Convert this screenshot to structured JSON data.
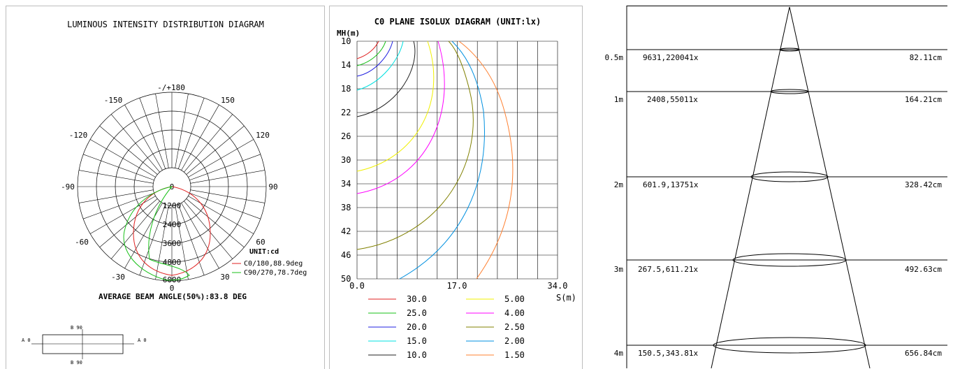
{
  "panel1": {
    "title": "LUMINOUS INTENSITY DISTRIBUTION DIAGRAM",
    "angle_labels": [
      "-/+180",
      "150",
      "-150",
      "120",
      "-120",
      "90",
      "-90",
      "60",
      "-60",
      "30",
      "-30",
      "0"
    ],
    "ring_labels": [
      "0",
      "1200",
      "2400",
      "3600",
      "4800",
      "6000"
    ],
    "unit": "UNIT:cd",
    "legend": [
      {
        "label": "C0/180,88.9deg",
        "color": "#e02020"
      },
      {
        "label": "C90/270,78.7deg",
        "color": "#18c018"
      }
    ],
    "beam_angle": "AVERAGE BEAM ANGLE(50%):83.8 DEG",
    "mini": {
      "top": "B 90",
      "bottom": "B 90",
      "left": "A 0",
      "right": "A 0"
    }
  },
  "panel2": {
    "title": "C0 PLANE ISOLUX DIAGRAM (UNIT:lx)",
    "y_axis_label": "MH(m)",
    "x_axis_label": "S(m)",
    "y_ticks": [
      "10",
      "14",
      "18",
      "22",
      "26",
      "30",
      "34",
      "38",
      "42",
      "46",
      "50"
    ],
    "x_ticks": [
      "0.0",
      "17.0",
      "34.0"
    ],
    "legend": [
      {
        "value": "30.0",
        "color": "#e02020"
      },
      {
        "value": "25.0",
        "color": "#18c018"
      },
      {
        "value": "20.0",
        "color": "#2020e0"
      },
      {
        "value": "15.0",
        "color": "#00e0e0"
      },
      {
        "value": "10.0",
        "color": "#202020"
      },
      {
        "value": "5.00",
        "color": "#f0f000"
      },
      {
        "value": "4.00",
        "color": "#ff00ff"
      },
      {
        "value": "2.50",
        "color": "#808000"
      },
      {
        "value": "2.00",
        "color": "#0090e0"
      },
      {
        "value": "1.50",
        "color": "#ff8030"
      }
    ]
  },
  "panel3": {
    "rows": [
      {
        "height": "0.5m",
        "lux": "9631,220041x",
        "diameter": "82.11cm"
      },
      {
        "height": "1m",
        "lux": "2408,55011x",
        "diameter": "164.21cm"
      },
      {
        "height": "2m",
        "lux": "601.9,13751x",
        "diameter": "328.42cm"
      },
      {
        "height": "3m",
        "lux": "267.5,611.21x",
        "diameter": "492.63cm"
      },
      {
        "height": "4m",
        "lux": "150.5,343.81x",
        "diameter": "656.84cm"
      }
    ]
  }
}
